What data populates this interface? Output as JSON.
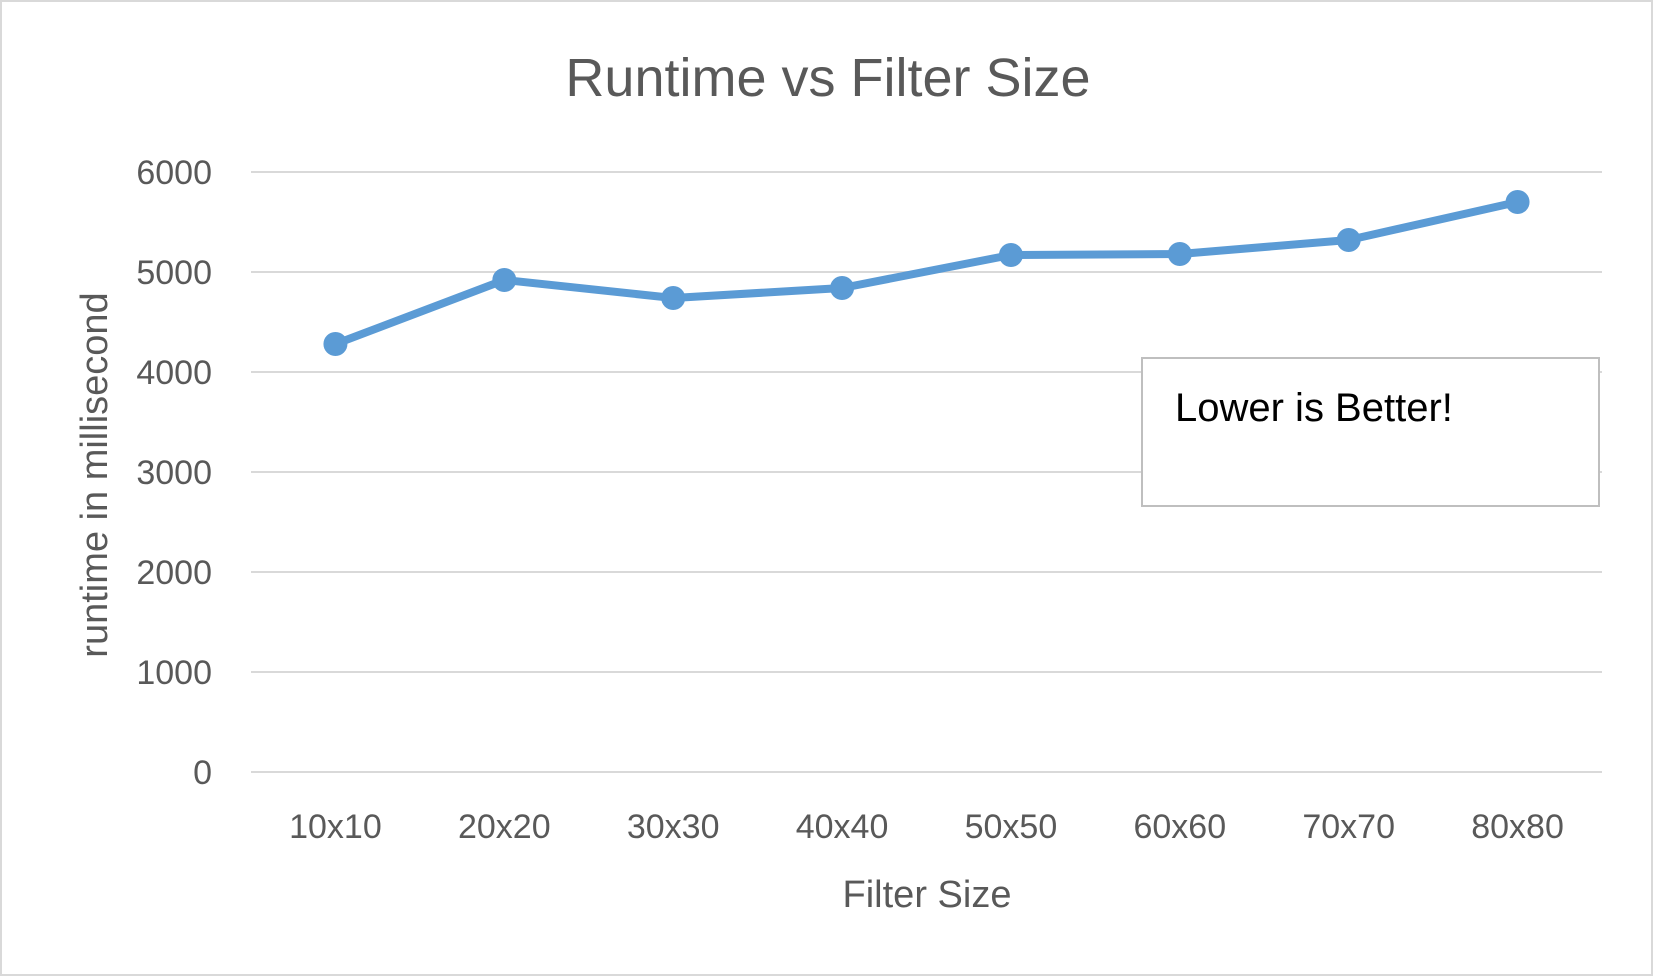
{
  "chart_data": {
    "type": "line",
    "title": "Runtime vs Filter Size",
    "xlabel": "Filter Size",
    "ylabel": "runtime in millisecond",
    "categories": [
      "10x10",
      "20x20",
      "30x30",
      "40x40",
      "50x50",
      "60x60",
      "70x70",
      "80x80"
    ],
    "series": [
      {
        "values": [
          4280,
          4920,
          4740,
          4840,
          5170,
          5180,
          5320,
          5700
        ]
      }
    ],
    "ylim": [
      0,
      6000
    ],
    "yticks": [
      "0",
      "1000",
      "2000",
      "3000",
      "4000",
      "5000",
      "6000"
    ],
    "grid": true,
    "legend": "none",
    "annotation": "Lower is Better!",
    "colors": {
      "series": "#5b9bd5",
      "grid": "#d9d9d9",
      "text": "#595959"
    }
  }
}
